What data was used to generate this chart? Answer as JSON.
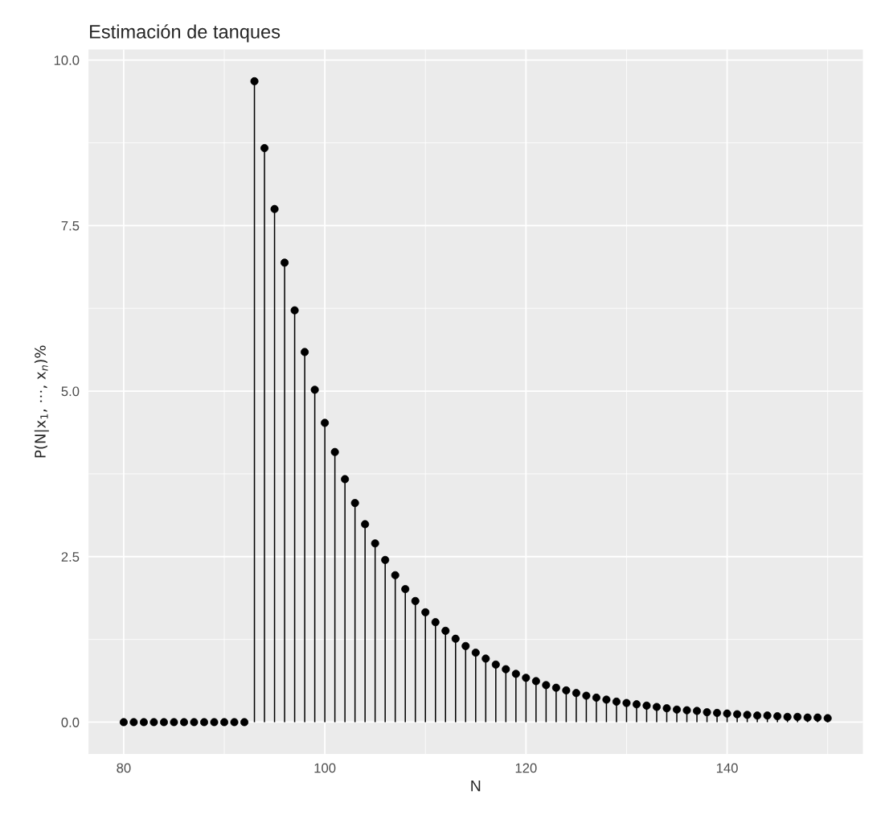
{
  "chart_data": {
    "type": "lollipop",
    "title": "Estimación de tanques",
    "xlabel": "N",
    "ylabel": "P(N|x$_{1}$, ⋯, x$_{n}$)%",
    "x": [
      80,
      81,
      82,
      83,
      84,
      85,
      86,
      87,
      88,
      89,
      90,
      91,
      92,
      93,
      94,
      95,
      96,
      97,
      98,
      99,
      100,
      101,
      102,
      103,
      104,
      105,
      106,
      107,
      108,
      109,
      110,
      111,
      112,
      113,
      114,
      115,
      116,
      117,
      118,
      119,
      120,
      121,
      122,
      123,
      124,
      125,
      126,
      127,
      128,
      129,
      130,
      131,
      132,
      133,
      134,
      135,
      136,
      137,
      138,
      139,
      140,
      141,
      142,
      143,
      144,
      145,
      146,
      147,
      148,
      149,
      150
    ],
    "series": [
      {
        "color": "#000000",
        "values": [
          0,
          0,
          0,
          0,
          0,
          0,
          0,
          0,
          0,
          0,
          0,
          0,
          0,
          9.68,
          8.67,
          7.75,
          6.94,
          6.22,
          5.59,
          5.02,
          4.52,
          4.08,
          3.67,
          3.31,
          2.99,
          2.7,
          2.45,
          2.22,
          2.01,
          1.83,
          1.66,
          1.51,
          1.38,
          1.26,
          1.15,
          1.05,
          0.96,
          0.87,
          0.8,
          0.73,
          0.67,
          0.62,
          0.56,
          0.52,
          0.48,
          0.44,
          0.4,
          0.37,
          0.34,
          0.31,
          0.29,
          0.27,
          0.25,
          0.23,
          0.21,
          0.19,
          0.18,
          0.17,
          0.15,
          0.14,
          0.13,
          0.12,
          0.11,
          0.1,
          0.1,
          0.09,
          0.08,
          0.08,
          0.07,
          0.07,
          0.06
        ]
      }
    ],
    "xlim": [
      76.5,
      153.5
    ],
    "ylim": [
      -0.48,
      10.16
    ],
    "xticks": [
      80,
      100,
      120,
      140
    ],
    "yticks": [
      {
        "value": 0,
        "label": "0.0"
      },
      {
        "value": 2.5,
        "label": "2.5"
      },
      {
        "value": 5,
        "label": "5.0"
      },
      {
        "value": 7.5,
        "label": "7.5"
      },
      {
        "value": 10,
        "label": "10.0"
      }
    ],
    "grid": true,
    "marker": "circle"
  }
}
